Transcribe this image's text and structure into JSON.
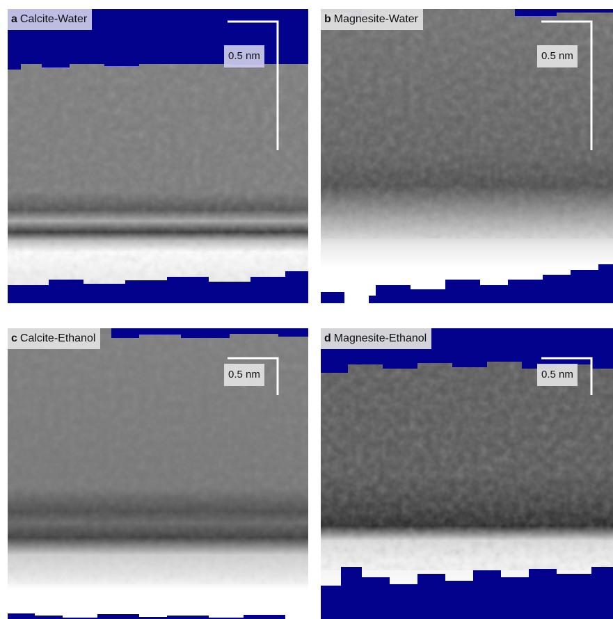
{
  "panels": [
    {
      "letter": "a",
      "title": "Calcite-Water",
      "scale_label": "0.5 nm"
    },
    {
      "letter": "b",
      "title": "Magnesite-Water",
      "scale_label": "0.5 nm"
    },
    {
      "letter": "c",
      "title": "Calcite-Ethanol",
      "scale_label": "0.5 nm"
    },
    {
      "letter": "d",
      "title": "Magnesite-Ethanol",
      "scale_label": "0.5 nm"
    }
  ]
}
